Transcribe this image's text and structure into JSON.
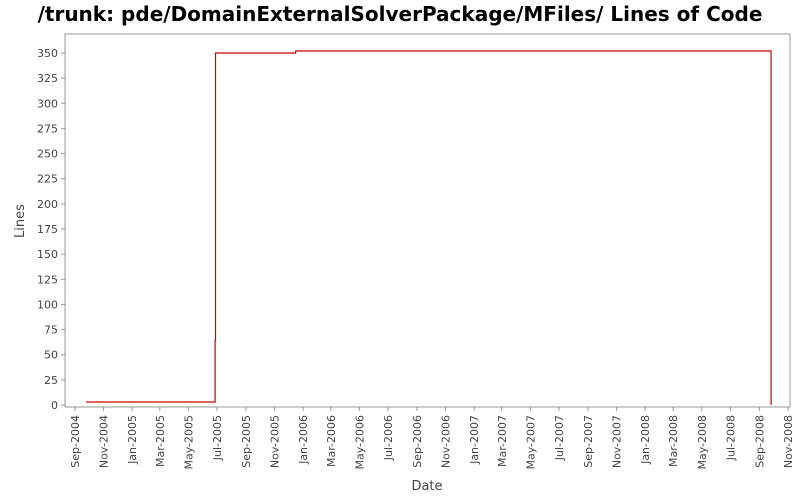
{
  "chart_data": {
    "type": "line",
    "title": "/trunk: pde/DomainExternalSolverPackage/MFiles/ Lines of Code",
    "xlabel": "Date",
    "ylabel": "Lines",
    "x_axis": {
      "type": "date",
      "range": [
        "2004-08-20",
        "2008-11-01"
      ]
    },
    "y_axis": {
      "range": [
        0,
        360
      ],
      "ticks": [
        0,
        25,
        50,
        75,
        100,
        125,
        150,
        175,
        200,
        225,
        250,
        275,
        300,
        325,
        350
      ]
    },
    "x_ticks": [
      {
        "label": "Sep-2004",
        "date": "2004-09-01"
      },
      {
        "label": "Nov-2004",
        "date": "2004-11-01"
      },
      {
        "label": "Jan-2005",
        "date": "2005-01-01"
      },
      {
        "label": "Mar-2005",
        "date": "2005-03-01"
      },
      {
        "label": "May-2005",
        "date": "2005-05-01"
      },
      {
        "label": "Jul-2005",
        "date": "2005-07-01"
      },
      {
        "label": "Sep-2005",
        "date": "2005-09-01"
      },
      {
        "label": "Nov-2005",
        "date": "2005-11-01"
      },
      {
        "label": "Jan-2006",
        "date": "2006-01-01"
      },
      {
        "label": "Mar-2006",
        "date": "2006-03-01"
      },
      {
        "label": "May-2006",
        "date": "2006-05-01"
      },
      {
        "label": "Jul-2006",
        "date": "2006-07-01"
      },
      {
        "label": "Sep-2006",
        "date": "2006-09-01"
      },
      {
        "label": "Nov-2006",
        "date": "2006-11-01"
      },
      {
        "label": "Jan-2007",
        "date": "2007-01-01"
      },
      {
        "label": "Mar-2007",
        "date": "2007-03-01"
      },
      {
        "label": "May-2007",
        "date": "2007-05-01"
      },
      {
        "label": "Jul-2007",
        "date": "2007-07-01"
      },
      {
        "label": "Sep-2007",
        "date": "2007-09-01"
      },
      {
        "label": "Nov-2007",
        "date": "2007-11-01"
      },
      {
        "label": "Jan-2008",
        "date": "2008-01-01"
      },
      {
        "label": "Mar-2008",
        "date": "2008-03-01"
      },
      {
        "label": "May-2008",
        "date": "2008-05-01"
      },
      {
        "label": "Jul-2008",
        "date": "2008-07-01"
      },
      {
        "label": "Sep-2008",
        "date": "2008-09-01"
      },
      {
        "label": "Nov-2008",
        "date": "2008-11-01"
      }
    ],
    "series": [
      {
        "color": "#cc0000",
        "step": true,
        "points": [
          {
            "date": "2004-09-25",
            "value": 3
          },
          {
            "date": "2005-06-26",
            "value": 3
          },
          {
            "date": "2005-06-27",
            "value": 64
          },
          {
            "date": "2005-06-28",
            "value": 350
          },
          {
            "date": "2005-12-15",
            "value": 350
          },
          {
            "date": "2005-12-16",
            "value": 352
          },
          {
            "date": "2008-09-25",
            "value": 352
          },
          {
            "date": "2008-09-26",
            "value": 0
          }
        ]
      }
    ],
    "grid": false,
    "legend": "none"
  }
}
